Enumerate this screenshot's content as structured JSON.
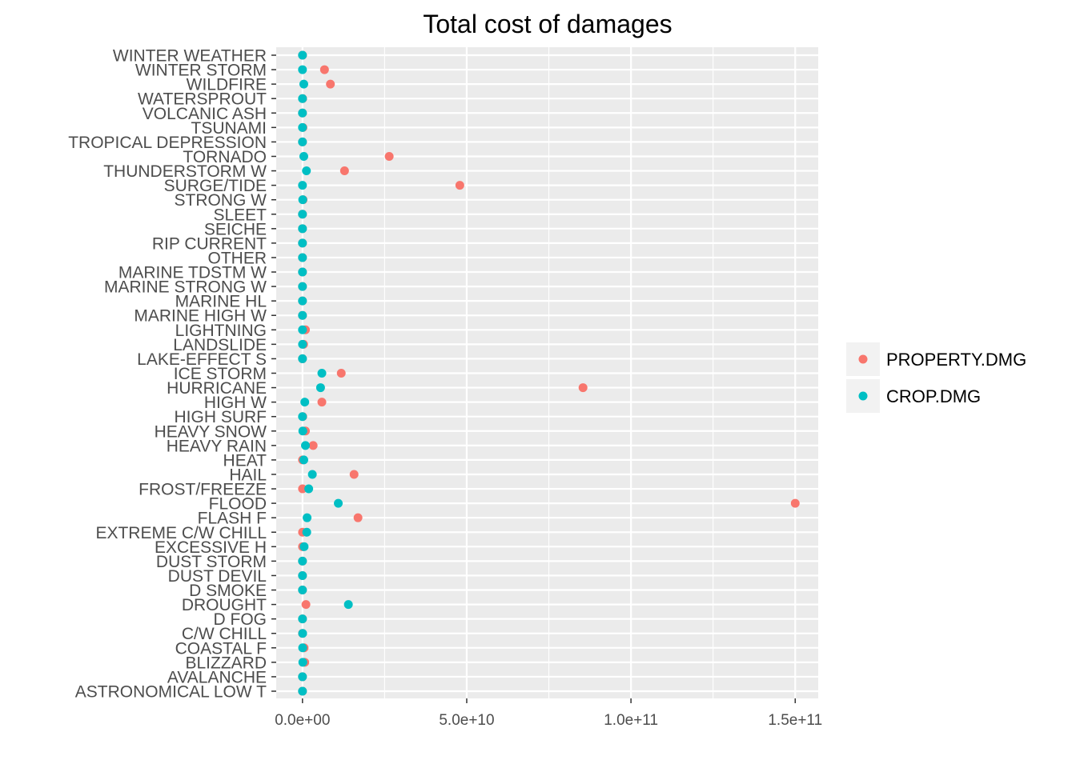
{
  "chart_data": {
    "type": "scatter",
    "title": "Total cost of damages",
    "xlabel": "",
    "ylabel": "",
    "xlim": [
      -8000000000,
      157000000000
    ],
    "x_ticks": [
      {
        "value": 0,
        "label": "0.0e+00"
      },
      {
        "value": 50000000000,
        "label": "5.0e+10"
      },
      {
        "value": 100000000000,
        "label": "1.0e+11"
      },
      {
        "value": 150000000000,
        "label": "1.5e+11"
      }
    ],
    "grid": true,
    "legend_position": "right",
    "categories": [
      "ASTRONOMICAL LOW T",
      "AVALANCHE",
      "BLIZZARD",
      "COASTAL F",
      "C/W CHILL",
      "D FOG",
      "DROUGHT",
      "D SMOKE",
      "DUST DEVIL",
      "DUST STORM",
      "EXCESSIVE H",
      "EXTREME C/W CHILL",
      "FLASH F",
      "FLOOD",
      "FROST/FREEZE",
      "HAIL",
      "HEAT",
      "HEAVY RAIN",
      "HEAVY SNOW",
      "HIGH SURF",
      "HIGH W",
      "HURRICANE",
      "ICE STORM",
      "LAKE-EFFECT S",
      "LANDSLIDE",
      "LIGHTNING",
      "MARINE HIGH W",
      "MARINE HL",
      "MARINE STRONG W",
      "MARINE TDSTM W",
      "OTHER",
      "RIP CURRENT",
      "SEICHE",
      "SLEET",
      "STRONG W",
      "SURGE/TIDE",
      "THUNDERSTORM W",
      "TORNADO",
      "TROPICAL DEPRESSION",
      "TSUNAMI",
      "VOLCANIC ASH",
      "WATERSPROUT",
      "WILDFIRE",
      "WINTER STORM",
      "WINTER WEATHER"
    ],
    "series": [
      {
        "name": "PROPERTY.DMG",
        "color": "#F8766D",
        "values": [
          10000000.0,
          10000000.0,
          700000000.0,
          500000000.0,
          10000000.0,
          20000000.0,
          1050000000.0,
          10000000.0,
          10000000.0,
          10000000.0,
          10000000.0,
          20000000.0,
          16900000000.0,
          150000000000.0,
          10000000.0,
          15700000000.0,
          10000000.0,
          3250000000.0,
          900000000.0,
          90000000.0,
          5900000000.0,
          85400000000.0,
          11800000000.0,
          10000000.0,
          330000000.0,
          900000000.0,
          10000000.0,
          10000000.0,
          10000000.0,
          10000000.0,
          10000000.0,
          10000000.0,
          10000000.0,
          10000000.0,
          180000000.0,
          47900000000.0,
          12800000000.0,
          26400000000.0,
          10000000.0,
          140000000.0,
          10000000.0,
          60000000.0,
          8500000000.0,
          6700000000.0,
          20000000.0
        ]
      },
      {
        "name": "CROP.DMG",
        "color": "#00BFC4",
        "values": [
          0.0,
          0.0,
          100000000.0,
          50000000.0,
          50000000.0,
          0.0,
          13970000000.0,
          0.0,
          0.0,
          0.0,
          500000000.0,
          1300000000.0,
          1400000000.0,
          10900000000.0,
          1900000000.0,
          3000000000.0,
          400000000.0,
          900000000.0,
          100000000.0,
          0.0,
          700000000.0,
          5500000000.0,
          5900000000.0,
          0.0,
          20000000.0,
          0.0,
          0.0,
          0.0,
          0.0,
          0.0,
          0.0,
          0.0,
          0.0,
          0.0,
          70000000.0,
          0.0,
          1200000000.0,
          400000000.0,
          0.0,
          0.0,
          0.0,
          0.0,
          400000000.0,
          0.0,
          0.0
        ]
      }
    ]
  }
}
